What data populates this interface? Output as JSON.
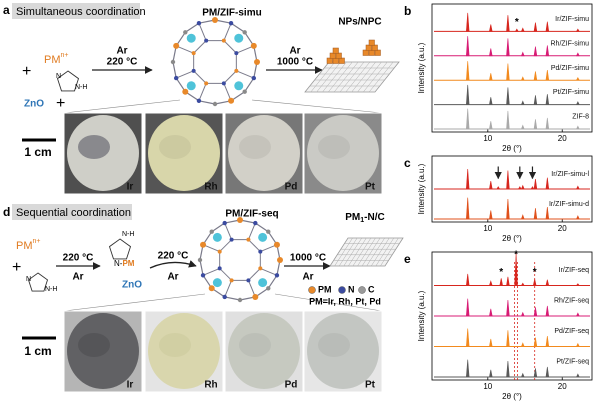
{
  "panel_a": {
    "label": "a",
    "title": "Simultaneous coordination",
    "plus": "+",
    "metal": "PM",
    "metal_charge": "n+",
    "ligand_n": "N",
    "ligand_nh": "N-H",
    "support": "ZnO",
    "step1_gas": "Ar",
    "step1_temp": "220 °C",
    "product": "PM/ZIF-simu",
    "step2_gas": "Ar",
    "step2_temp": "1000 °C",
    "final": "NPs/NPC",
    "scale": "1 cm",
    "samples": [
      "Ir",
      "Rh",
      "Pd",
      "Pt"
    ]
  },
  "panel_d": {
    "label": "d",
    "title": "Sequential coordination",
    "plus": "+",
    "metal": "PM",
    "metal_charge": "n+",
    "ligand_n": "N",
    "ligand_nh": "N-H",
    "intermediate_nh": "N-H",
    "intermediate_n": "N-",
    "intermediate_metal": "PM",
    "support": "ZnO",
    "step1_temp": "220 °C",
    "step1_gas": "Ar",
    "step2_temp": "220 °C",
    "step2_gas": "Ar",
    "product": "PM/ZIF-seq",
    "step3_temp": "1000 °C",
    "step3_gas": "Ar",
    "final_main": "PM",
    "final_sub": "1",
    "final_rest": "-N/C",
    "legend": [
      "PM",
      "N",
      "C"
    ],
    "note": "PM=Ir, Rh, Pt, Pd",
    "scale": "1 cm",
    "samples": [
      "Ir",
      "Rh",
      "Pd",
      "Pt"
    ]
  },
  "chart_data": [
    {
      "panel_label": "b",
      "type": "line",
      "ylabel": "Intensity (a.u.)",
      "xlabel": "2θ (°)",
      "xlim": [
        2.5,
        24
      ],
      "xticks": [
        10,
        20
      ],
      "ylim": [
        0,
        100
      ],
      "annotations": [
        {
          "text": "*",
          "x": 13.9,
          "y": 40,
          "series": 0
        }
      ],
      "series": [
        {
          "name": "Ir/ZIF-simu",
          "color": "#d7261e",
          "x": [
            7.3,
            10.4,
            12.7,
            13.9,
            14.7,
            16.4,
            18.0,
            22.1
          ],
          "values": [
            80,
            30,
            70,
            10,
            14,
            38,
            42,
            10
          ]
        },
        {
          "name": "Rh/ZIF-simu",
          "color": "#d81b74",
          "x": [
            7.3,
            10.4,
            12.7,
            14.7,
            16.4,
            18.0,
            22.1
          ],
          "values": [
            85,
            32,
            75,
            15,
            40,
            45,
            12
          ]
        },
        {
          "name": "Pd/ZIF-simu",
          "color": "#f28a1e",
          "x": [
            7.3,
            10.4,
            12.7,
            14.7,
            16.4,
            18.0,
            22.1
          ],
          "values": [
            82,
            30,
            72,
            14,
            38,
            44,
            11
          ]
        },
        {
          "name": "Pt/ZIF-simu",
          "color": "#5a5a5a",
          "x": [
            7.3,
            10.4,
            12.7,
            14.7,
            16.4,
            18.0,
            22.1
          ],
          "values": [
            85,
            32,
            74,
            15,
            40,
            45,
            12
          ]
        },
        {
          "name": "ZIF-8",
          "color": "#aaaaaa",
          "x": [
            7.3,
            10.4,
            12.7,
            14.7,
            16.4,
            18.0,
            22.1
          ],
          "values": [
            88,
            34,
            78,
            16,
            42,
            48,
            12
          ]
        }
      ]
    },
    {
      "panel_label": "c",
      "type": "line",
      "ylabel": "Intensity (a.u.)",
      "xlabel": "2θ (°)",
      "xlim": [
        2.5,
        24
      ],
      "xticks": [
        10,
        20
      ],
      "ylim": [
        0,
        100
      ],
      "arrows": [
        11.4,
        14.3,
        16.0
      ],
      "series": [
        {
          "name": "Ir/ZIF-simu-l",
          "color": "#d7261e",
          "x": [
            7.3,
            10.4,
            11.4,
            12.7,
            14.3,
            14.7,
            16.0,
            16.4,
            18.0,
            22.1
          ],
          "values": [
            70,
            28,
            8,
            65,
            8,
            12,
            8,
            35,
            40,
            10
          ]
        },
        {
          "name": "Ir/ZIF-simu-d",
          "color": "#e0501b",
          "x": [
            7.3,
            10.4,
            12.7,
            14.7,
            16.4,
            18.0,
            22.1
          ],
          "values": [
            75,
            30,
            70,
            14,
            38,
            42,
            11
          ]
        }
      ]
    },
    {
      "panel_label": "e",
      "type": "line",
      "ylabel": "Intensity (a.u.)",
      "xlabel": "2θ (°)",
      "xlim": [
        2.5,
        24
      ],
      "xticks": [
        10,
        20
      ],
      "ylim": [
        0,
        100
      ],
      "annotations": [
        {
          "text": "*",
          "x": 11.8,
          "y": 45,
          "series": 0
        },
        {
          "text": "*",
          "x": 13.8,
          "y": 105,
          "series": 0
        },
        {
          "text": "*",
          "x": 16.3,
          "y": 45,
          "series": 0
        }
      ],
      "guides": [
        13.6,
        14.0,
        16.3
      ],
      "guide_color": "#d7261e",
      "series": [
        {
          "name": "Ir/ZIF-seq",
          "color": "#d7261e",
          "x": [
            7.3,
            10.4,
            11.8,
            12.7,
            13.8,
            14.7,
            16.3,
            18.0,
            22.1
          ],
          "values": [
            40,
            15,
            25,
            30,
            110,
            8,
            22,
            20,
            6
          ]
        },
        {
          "name": "Rh/ZIF-seq",
          "color": "#d81b74",
          "x": [
            7.3,
            10.4,
            12.7,
            14.7,
            16.4,
            18.0,
            22.1
          ],
          "values": [
            60,
            25,
            55,
            12,
            30,
            35,
            10
          ]
        },
        {
          "name": "Pd/ZIF-seq",
          "color": "#f28a1e",
          "x": [
            7.3,
            10.4,
            12.7,
            14.7,
            16.4,
            18.0,
            22.1
          ],
          "values": [
            62,
            26,
            56,
            12,
            31,
            36,
            10
          ]
        },
        {
          "name": "Pt/ZIF-seq",
          "color": "#5a5a5a",
          "x": [
            7.3,
            10.4,
            12.7,
            14.7,
            16.4,
            18.0,
            22.1
          ],
          "values": [
            60,
            25,
            55,
            12,
            30,
            35,
            10
          ]
        }
      ]
    }
  ]
}
